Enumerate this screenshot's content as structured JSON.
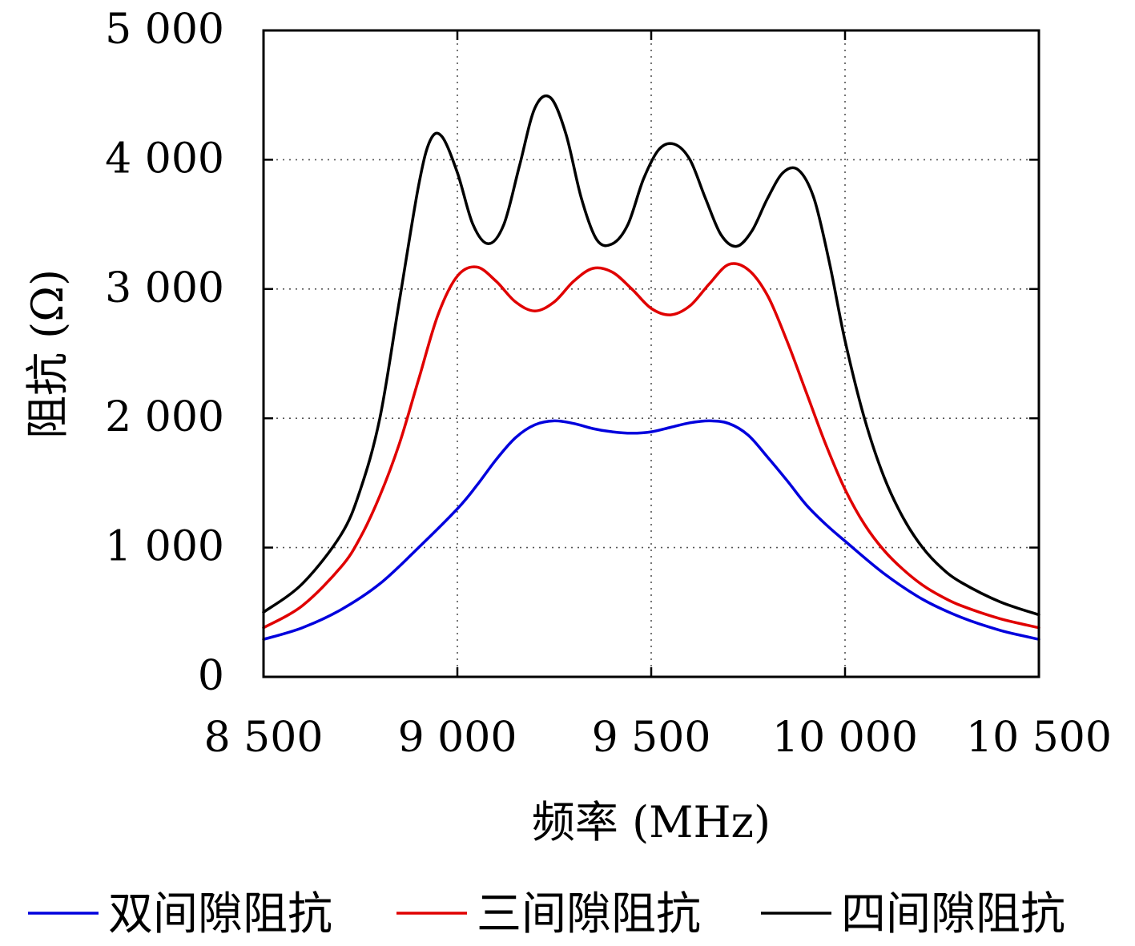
{
  "chart_data": {
    "type": "line",
    "title": "",
    "xlabel": "频率 (MHz)",
    "ylabel": "阻抗 (Ω)",
    "xlim": [
      8500,
      10500
    ],
    "ylim": [
      0,
      5000
    ],
    "grid": true,
    "legend_position": "bottom",
    "x_ticks": [
      8500,
      9000,
      9500,
      10000,
      10500
    ],
    "x_tick_labels": [
      "8 500",
      "9 000",
      "9 500",
      "10 000",
      "10 500"
    ],
    "y_ticks": [
      0,
      1000,
      2000,
      3000,
      4000,
      5000
    ],
    "y_tick_labels": [
      "0",
      "1 000",
      "2 000",
      "3 000",
      "4 000",
      "5 000"
    ],
    "series": [
      {
        "name": "双间隙阻抗",
        "color": "#0000dd",
        "x": [
          8500,
          8600,
          8700,
          8800,
          8900,
          9000,
          9050,
          9100,
          9150,
          9200,
          9250,
          9300,
          9350,
          9400,
          9450,
          9500,
          9550,
          9600,
          9650,
          9700,
          9750,
          9800,
          9850,
          9900,
          9950,
          10000,
          10100,
          10200,
          10300,
          10400,
          10500
        ],
        "y": [
          290,
          380,
          520,
          720,
          1000,
          1300,
          1480,
          1680,
          1850,
          1950,
          1980,
          1960,
          1920,
          1895,
          1885,
          1895,
          1930,
          1965,
          1980,
          1960,
          1870,
          1700,
          1520,
          1330,
          1180,
          1050,
          800,
          600,
          460,
          360,
          290
        ]
      },
      {
        "name": "三间隙阻抗",
        "color": "#e00000",
        "x": [
          8500,
          8600,
          8700,
          8750,
          8800,
          8850,
          8900,
          8950,
          9000,
          9050,
          9100,
          9150,
          9200,
          9250,
          9300,
          9350,
          9400,
          9450,
          9500,
          9550,
          9600,
          9650,
          9700,
          9750,
          9800,
          9850,
          9900,
          9950,
          10000,
          10050,
          10100,
          10150,
          10200,
          10250,
          10300,
          10400,
          10500
        ],
        "y": [
          380,
          550,
          850,
          1080,
          1400,
          1800,
          2300,
          2800,
          3100,
          3170,
          3060,
          2900,
          2830,
          2900,
          3060,
          3160,
          3130,
          3000,
          2850,
          2800,
          2870,
          3040,
          3190,
          3150,
          2950,
          2600,
          2200,
          1800,
          1450,
          1180,
          980,
          830,
          710,
          620,
          550,
          450,
          380
        ]
      },
      {
        "name": "四间隙阻抗",
        "color": "#000000",
        "x": [
          8500,
          8600,
          8700,
          8750,
          8800,
          8850,
          8900,
          8930,
          8960,
          9000,
          9040,
          9080,
          9120,
          9160,
          9200,
          9240,
          9280,
          9320,
          9360,
          9400,
          9440,
          9480,
          9520,
          9560,
          9600,
          9640,
          9680,
          9720,
          9760,
          9800,
          9840,
          9880,
          9920,
          9960,
          10000,
          10050,
          10100,
          10150,
          10200,
          10250,
          10300,
          10400,
          10500
        ],
        "y": [
          500,
          720,
          1100,
          1450,
          2000,
          2900,
          3800,
          4150,
          4180,
          3900,
          3500,
          3350,
          3500,
          3950,
          4400,
          4480,
          4200,
          3700,
          3380,
          3350,
          3500,
          3850,
          4080,
          4120,
          4000,
          3700,
          3420,
          3330,
          3450,
          3700,
          3900,
          3920,
          3700,
          3200,
          2600,
          2000,
          1550,
          1230,
          1000,
          840,
          730,
          580,
          480
        ]
      }
    ]
  }
}
